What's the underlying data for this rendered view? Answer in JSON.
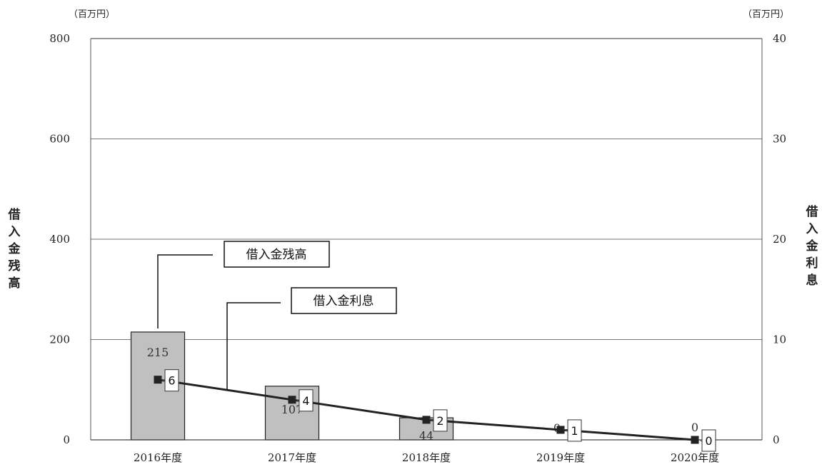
{
  "chart_data": {
    "type": "bar",
    "categories": [
      "2016年度",
      "2017年度",
      "2018年度",
      "2019年度",
      "2020年度"
    ],
    "series": [
      {
        "name": "借入金残高",
        "type": "bar",
        "axis": "left",
        "values": [
          215,
          107,
          44,
          0,
          0
        ],
        "labels": [
          "215",
          "107",
          "44",
          "0",
          "0"
        ],
        "color": "#c0c0c0"
      },
      {
        "name": "借入金利息",
        "type": "line",
        "axis": "right",
        "values": [
          6,
          4,
          2,
          1,
          0
        ],
        "labels": [
          "6",
          "4",
          "2",
          "1",
          "0"
        ],
        "color": "#222222"
      }
    ],
    "y_left": {
      "label": "借入金残高",
      "unit": "（百万円）",
      "ylim": [
        0,
        800
      ],
      "ticks": [
        "0",
        "200",
        "400",
        "600",
        "800"
      ]
    },
    "y_right": {
      "label": "借入金利息",
      "unit": "（百万円）",
      "ylim": [
        0,
        40
      ],
      "ticks": [
        "0",
        "10",
        "20",
        "30",
        "40"
      ]
    },
    "grid": true,
    "legend": "callouts"
  }
}
